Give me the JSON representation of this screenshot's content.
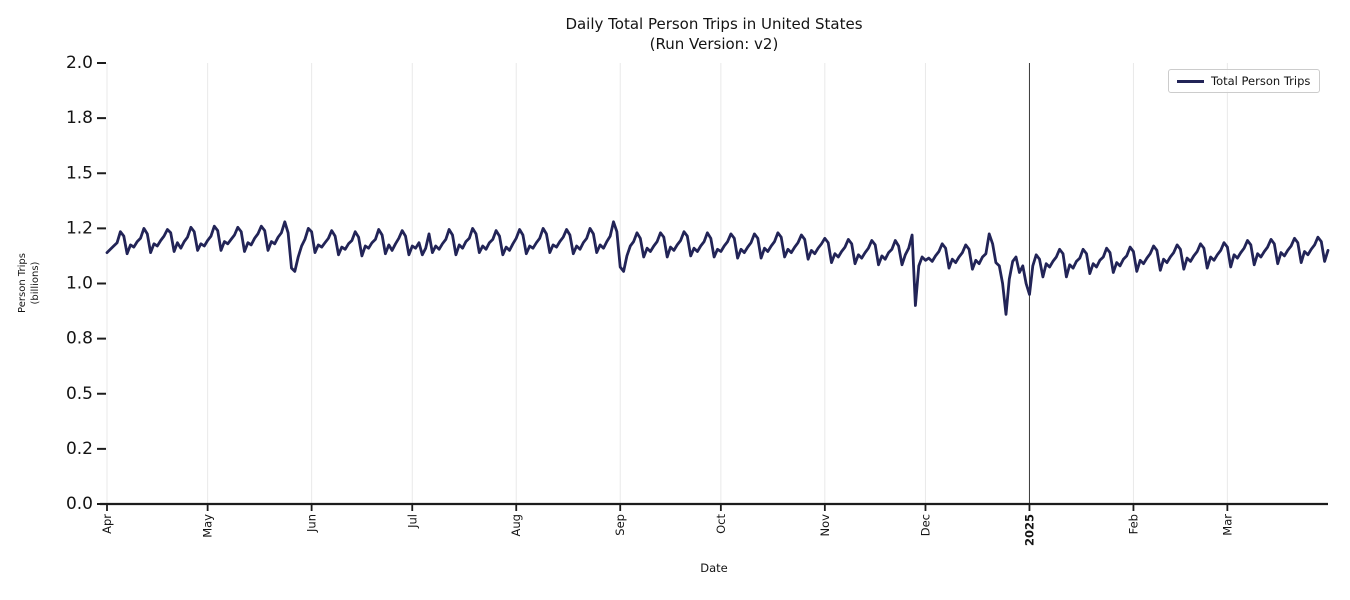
{
  "title": "Daily Total Person Trips in United States",
  "subtitle": "(Run Version: v2)",
  "legend": {
    "label": "Total Person Trips"
  },
  "axes": {
    "xlabel": "Date",
    "ylabel_line1": "Person Trips",
    "ylabel_line2": "(billions)"
  },
  "colors": {
    "line": "#222457",
    "grid": "#e9e9e9",
    "year_line": "#3a3a3a",
    "axis": "#1c1c1c",
    "text": "#141414",
    "legend_border": "#cccccc",
    "background": "#ffffff"
  },
  "chart_data": {
    "type": "line",
    "title": "Daily Total Person Trips in United States (Run Version: v2)",
    "xlabel": "Date",
    "ylabel": "Person Trips (billions)",
    "ylim": [
      0.0,
      2.0
    ],
    "grid": "vertical-month-gridlines",
    "legend_position": "upper right",
    "start_date": "2024-04-01",
    "frequency": "daily",
    "year_marker_day": 275,
    "x_ticks": [
      {
        "day": 0,
        "label": "Apr",
        "bold": false
      },
      {
        "day": 30,
        "label": "May",
        "bold": false
      },
      {
        "day": 61,
        "label": "Jun",
        "bold": false
      },
      {
        "day": 91,
        "label": "Jul",
        "bold": false
      },
      {
        "day": 122,
        "label": "Aug",
        "bold": false
      },
      {
        "day": 153,
        "label": "Sep",
        "bold": false
      },
      {
        "day": 183,
        "label": "Oct",
        "bold": false
      },
      {
        "day": 214,
        "label": "Nov",
        "bold": false
      },
      {
        "day": 244,
        "label": "Dec",
        "bold": false
      },
      {
        "day": 275,
        "label": "2025",
        "bold": true
      },
      {
        "day": 306,
        "label": "Feb",
        "bold": false
      },
      {
        "day": 334,
        "label": "Mar",
        "bold": false
      }
    ],
    "y_tick_values": [
      0,
      0.25,
      0.5,
      0.75,
      1.0,
      1.25,
      1.5,
      1.75,
      2.0
    ],
    "y_tick_labels": [
      "0.0",
      "0.2",
      "0.5",
      "0.8",
      "1.0",
      "1.2",
      "1.5",
      "1.8",
      "2.0"
    ],
    "series": [
      {
        "name": "Total Person Trips",
        "values": [
          1.14,
          1.155,
          1.17,
          1.185,
          1.235,
          1.215,
          1.135,
          1.175,
          1.165,
          1.19,
          1.205,
          1.25,
          1.225,
          1.14,
          1.18,
          1.17,
          1.195,
          1.215,
          1.245,
          1.23,
          1.145,
          1.185,
          1.16,
          1.19,
          1.21,
          1.255,
          1.235,
          1.15,
          1.18,
          1.17,
          1.195,
          1.215,
          1.26,
          1.24,
          1.15,
          1.19,
          1.18,
          1.2,
          1.22,
          1.255,
          1.235,
          1.145,
          1.185,
          1.175,
          1.205,
          1.225,
          1.26,
          1.24,
          1.15,
          1.19,
          1.18,
          1.21,
          1.23,
          1.28,
          1.23,
          1.07,
          1.055,
          1.12,
          1.17,
          1.2,
          1.25,
          1.235,
          1.14,
          1.175,
          1.165,
          1.185,
          1.205,
          1.24,
          1.215,
          1.13,
          1.165,
          1.155,
          1.18,
          1.195,
          1.235,
          1.21,
          1.125,
          1.17,
          1.16,
          1.185,
          1.2,
          1.245,
          1.22,
          1.135,
          1.175,
          1.15,
          1.18,
          1.205,
          1.24,
          1.215,
          1.13,
          1.17,
          1.16,
          1.185,
          1.13,
          1.16,
          1.225,
          1.14,
          1.17,
          1.155,
          1.18,
          1.2,
          1.245,
          1.22,
          1.13,
          1.175,
          1.16,
          1.19,
          1.205,
          1.25,
          1.225,
          1.14,
          1.17,
          1.155,
          1.185,
          1.2,
          1.24,
          1.215,
          1.13,
          1.165,
          1.15,
          1.18,
          1.205,
          1.245,
          1.22,
          1.135,
          1.17,
          1.16,
          1.185,
          1.205,
          1.25,
          1.225,
          1.14,
          1.175,
          1.165,
          1.19,
          1.21,
          1.245,
          1.22,
          1.135,
          1.17,
          1.155,
          1.185,
          1.205,
          1.25,
          1.225,
          1.14,
          1.175,
          1.16,
          1.19,
          1.215,
          1.28,
          1.235,
          1.075,
          1.055,
          1.125,
          1.17,
          1.19,
          1.23,
          1.205,
          1.12,
          1.16,
          1.145,
          1.17,
          1.19,
          1.23,
          1.21,
          1.12,
          1.165,
          1.15,
          1.175,
          1.195,
          1.235,
          1.215,
          1.125,
          1.16,
          1.145,
          1.17,
          1.19,
          1.23,
          1.205,
          1.12,
          1.155,
          1.145,
          1.17,
          1.19,
          1.225,
          1.205,
          1.115,
          1.155,
          1.14,
          1.165,
          1.185,
          1.225,
          1.205,
          1.115,
          1.16,
          1.145,
          1.17,
          1.19,
          1.23,
          1.21,
          1.12,
          1.155,
          1.14,
          1.165,
          1.185,
          1.22,
          1.2,
          1.11,
          1.15,
          1.135,
          1.16,
          1.18,
          1.205,
          1.185,
          1.095,
          1.135,
          1.12,
          1.145,
          1.165,
          1.2,
          1.18,
          1.09,
          1.13,
          1.115,
          1.14,
          1.16,
          1.195,
          1.175,
          1.085,
          1.125,
          1.11,
          1.14,
          1.155,
          1.195,
          1.17,
          1.085,
          1.13,
          1.16,
          1.22,
          0.9,
          1.08,
          1.12,
          1.105,
          1.115,
          1.1,
          1.125,
          1.145,
          1.18,
          1.16,
          1.07,
          1.11,
          1.095,
          1.12,
          1.14,
          1.175,
          1.155,
          1.065,
          1.105,
          1.09,
          1.12,
          1.135,
          1.225,
          1.18,
          1.095,
          1.08,
          1.0,
          0.86,
          1.02,
          1.1,
          1.12,
          1.05,
          1.08,
          1.0,
          0.95,
          1.08,
          1.13,
          1.11,
          1.03,
          1.09,
          1.075,
          1.1,
          1.12,
          1.155,
          1.135,
          1.03,
          1.085,
          1.07,
          1.1,
          1.115,
          1.155,
          1.135,
          1.045,
          1.09,
          1.075,
          1.105,
          1.12,
          1.16,
          1.14,
          1.05,
          1.095,
          1.08,
          1.11,
          1.125,
          1.165,
          1.145,
          1.055,
          1.105,
          1.09,
          1.115,
          1.135,
          1.17,
          1.15,
          1.06,
          1.11,
          1.095,
          1.12,
          1.14,
          1.175,
          1.155,
          1.065,
          1.115,
          1.1,
          1.125,
          1.145,
          1.18,
          1.16,
          1.07,
          1.12,
          1.105,
          1.13,
          1.15,
          1.185,
          1.165,
          1.075,
          1.13,
          1.115,
          1.14,
          1.16,
          1.195,
          1.175,
          1.085,
          1.135,
          1.12,
          1.145,
          1.165,
          1.2,
          1.18,
          1.09,
          1.14,
          1.125,
          1.15,
          1.17,
          1.205,
          1.185,
          1.095,
          1.145,
          1.13,
          1.155,
          1.175,
          1.21,
          1.19,
          1.1,
          1.15
        ]
      }
    ]
  }
}
